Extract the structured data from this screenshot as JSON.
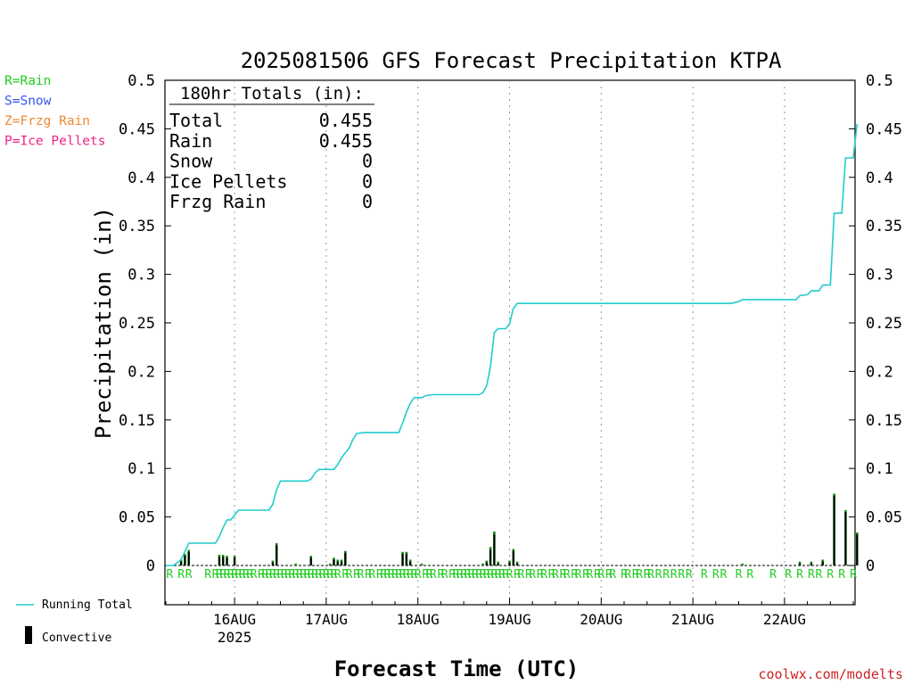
{
  "legend_types": [
    {
      "label": "R=Rain",
      "color": "#22cc22"
    },
    {
      "label": "S=Snow",
      "color": "#3355ee"
    },
    {
      "label": "Z=Frzg Rain",
      "color": "#ee8833"
    },
    {
      "label": "P=Ice Pellets",
      "color": "#ee2288"
    }
  ],
  "legend_series": {
    "running_total": "Running Total",
    "convective": "Convective"
  },
  "totals": {
    "header": "180hr Totals (in):",
    "rows": [
      {
        "label": "Total",
        "value": "0.455"
      },
      {
        "label": "Rain",
        "value": "0.455"
      },
      {
        "label": "Snow",
        "value": "0"
      },
      {
        "label": "Ice Pellets",
        "value": "0"
      },
      {
        "label": "Frzg Rain",
        "value": "0"
      }
    ]
  },
  "credit": "coolwx.com/modelts",
  "colors": {
    "running_total": "#22cccc",
    "precip_bar": "#118811",
    "convective": "#000000",
    "rain_marker": "#22cc22",
    "credit": "#cc2222"
  },
  "chart_data": {
    "type": "bar",
    "title": "2025081506 GFS Forecast Precipitation KTPA",
    "xlabel": "Forecast Time (UTC)",
    "ylabel": "Precipitation (in)",
    "ylim": [
      0,
      0.5
    ],
    "y_ticks": [
      "0",
      "0.05",
      "0.1",
      "0.15",
      "0.2",
      "0.25",
      "0.3",
      "0.35",
      "0.4",
      "0.45",
      "0.5"
    ],
    "x_unit": "forecast hour",
    "xlim": [
      0,
      180
    ],
    "x_ticks": [
      {
        "hour": 18,
        "label": "16AUG",
        "sublabel": "2025"
      },
      {
        "hour": 42,
        "label": "17AUG"
      },
      {
        "hour": 66,
        "label": "18AUG"
      },
      {
        "hour": 90,
        "label": "19AUG"
      },
      {
        "hour": 114,
        "label": "20AUG"
      },
      {
        "hour": 138,
        "label": "21AUG"
      },
      {
        "hour": 162,
        "label": "22AUG"
      }
    ],
    "grid": "vertical dotted at day boundaries",
    "precip_type_marker": "R",
    "precip_type_hours": [
      1,
      4,
      6,
      11,
      13,
      14,
      15,
      16,
      17,
      18,
      19,
      20,
      21,
      22,
      23,
      25,
      26,
      27,
      28,
      29,
      30,
      31,
      32,
      33,
      34,
      35,
      36,
      37,
      38,
      39,
      40,
      41,
      42,
      43,
      44,
      45,
      47,
      48,
      50,
      51,
      53,
      54,
      56,
      57,
      58,
      59,
      60,
      61,
      62,
      63,
      64,
      65,
      66,
      68,
      69,
      70,
      72,
      73,
      75,
      76,
      77,
      78,
      79,
      80,
      81,
      82,
      83,
      84,
      85,
      86,
      87,
      88,
      89,
      90,
      92,
      93,
      95,
      96,
      98,
      99,
      101,
      102,
      104,
      105,
      107,
      108,
      110,
      111,
      113,
      114,
      116,
      117,
      120,
      121,
      123,
      124,
      126,
      127,
      129,
      131,
      133,
      135,
      137,
      141,
      144,
      146,
      150,
      153,
      159,
      163,
      166,
      169,
      171,
      174,
      177,
      180
    ],
    "series": [
      {
        "name": "Running Total",
        "kind": "line",
        "points": [
          [
            0,
            0
          ],
          [
            2,
            0
          ],
          [
            4,
            0.006
          ],
          [
            6,
            0.023
          ],
          [
            13,
            0.023
          ],
          [
            14,
            0.03
          ],
          [
            15,
            0.039
          ],
          [
            16,
            0.047
          ],
          [
            17,
            0.047
          ],
          [
            18,
            0.052
          ],
          [
            19,
            0.057
          ],
          [
            27,
            0.057
          ],
          [
            28,
            0.063
          ],
          [
            29,
            0.078
          ],
          [
            30,
            0.087
          ],
          [
            37,
            0.087
          ],
          [
            38,
            0.089
          ],
          [
            39,
            0.095
          ],
          [
            40,
            0.099
          ],
          [
            44,
            0.099
          ],
          [
            45,
            0.104
          ],
          [
            46,
            0.111
          ],
          [
            47,
            0.116
          ],
          [
            48,
            0.121
          ],
          [
            49,
            0.13
          ],
          [
            50,
            0.136
          ],
          [
            52,
            0.137
          ],
          [
            61,
            0.137
          ],
          [
            62,
            0.147
          ],
          [
            63,
            0.158
          ],
          [
            64,
            0.167
          ],
          [
            65,
            0.173
          ],
          [
            67,
            0.173
          ],
          [
            68,
            0.175
          ],
          [
            70,
            0.176
          ],
          [
            82,
            0.176
          ],
          [
            83,
            0.178
          ],
          [
            84,
            0.185
          ],
          [
            85,
            0.205
          ],
          [
            86,
            0.24
          ],
          [
            87,
            0.244
          ],
          [
            89,
            0.244
          ],
          [
            90,
            0.249
          ],
          [
            91,
            0.265
          ],
          [
            92,
            0.27
          ],
          [
            148,
            0.27
          ],
          [
            149,
            0.271
          ],
          [
            150,
            0.272
          ],
          [
            151,
            0.274
          ],
          [
            165,
            0.274
          ],
          [
            166,
            0.278
          ],
          [
            168,
            0.279
          ],
          [
            169,
            0.283
          ],
          [
            171,
            0.283
          ],
          [
            172,
            0.289
          ],
          [
            174,
            0.289
          ],
          [
            175,
            0.363
          ],
          [
            177,
            0.363
          ],
          [
            178,
            0.42
          ],
          [
            180,
            0.42
          ],
          [
            181,
            0.455
          ]
        ]
      },
      {
        "name": "Precipitation",
        "kind": "bar",
        "points": [
          [
            4,
            0.006
          ],
          [
            5,
            0.012
          ],
          [
            6,
            0.016
          ],
          [
            14,
            0.011
          ],
          [
            15,
            0.011
          ],
          [
            16,
            0.01
          ],
          [
            18,
            0.01
          ],
          [
            28,
            0.005
          ],
          [
            29,
            0.023
          ],
          [
            34,
            0.002
          ],
          [
            38,
            0.01
          ],
          [
            43,
            0.002
          ],
          [
            44,
            0.008
          ],
          [
            45,
            0.006
          ],
          [
            46,
            0.006
          ],
          [
            47,
            0.015
          ],
          [
            62,
            0.014
          ],
          [
            63,
            0.014
          ],
          [
            64,
            0.006
          ],
          [
            67,
            0.002
          ],
          [
            83,
            0.002
          ],
          [
            84,
            0.005
          ],
          [
            85,
            0.019
          ],
          [
            86,
            0.035
          ],
          [
            87,
            0.004
          ],
          [
            90,
            0.005
          ],
          [
            91,
            0.017
          ],
          [
            92,
            0.004
          ],
          [
            151,
            0.002
          ],
          [
            166,
            0.004
          ],
          [
            169,
            0.004
          ],
          [
            172,
            0.006
          ],
          [
            175,
            0.074
          ],
          [
            178,
            0.057
          ],
          [
            181,
            0.034
          ]
        ]
      },
      {
        "name": "Convective",
        "kind": "bar",
        "points": [
          [
            4,
            0.004
          ],
          [
            5,
            0.01
          ],
          [
            6,
            0.014
          ],
          [
            14,
            0.009
          ],
          [
            15,
            0.009
          ],
          [
            16,
            0.008
          ],
          [
            18,
            0.008
          ],
          [
            28,
            0.003
          ],
          [
            29,
            0.021
          ],
          [
            38,
            0.008
          ],
          [
            44,
            0.006
          ],
          [
            45,
            0.004
          ],
          [
            46,
            0.004
          ],
          [
            47,
            0.013
          ],
          [
            62,
            0.012
          ],
          [
            63,
            0.012
          ],
          [
            64,
            0.004
          ],
          [
            84,
            0.003
          ],
          [
            85,
            0.016
          ],
          [
            86,
            0.032
          ],
          [
            87,
            0.002
          ],
          [
            90,
            0.003
          ],
          [
            91,
            0.015
          ],
          [
            92,
            0.002
          ],
          [
            166,
            0.002
          ],
          [
            169,
            0.002
          ],
          [
            172,
            0.004
          ],
          [
            175,
            0.072
          ],
          [
            178,
            0.055
          ],
          [
            181,
            0.032
          ]
        ]
      }
    ]
  }
}
